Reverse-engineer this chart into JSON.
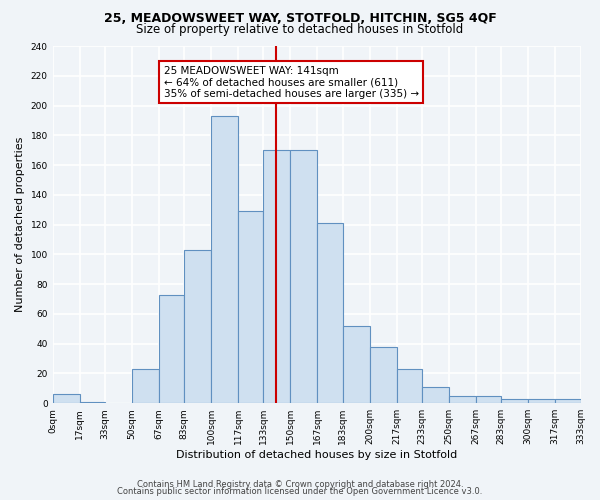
{
  "title1": "25, MEADOWSWEET WAY, STOTFOLD, HITCHIN, SG5 4QF",
  "title2": "Size of property relative to detached houses in Stotfold",
  "xlabel": "Distribution of detached houses by size in Stotfold",
  "ylabel": "Number of detached properties",
  "bin_edges": [
    0,
    17,
    33,
    50,
    67,
    83,
    100,
    117,
    133,
    150,
    167,
    183,
    200,
    217,
    233,
    250,
    267,
    283,
    300,
    317,
    333
  ],
  "bin_counts": [
    6,
    1,
    0,
    23,
    73,
    103,
    193,
    129,
    170,
    170,
    121,
    52,
    38,
    23,
    11,
    5,
    5,
    3,
    3,
    3
  ],
  "bar_color": "#cfe0f0",
  "bar_edgecolor": "#6090c0",
  "property_line_x": 141,
  "property_line_color": "#cc0000",
  "annotation_line1": "25 MEADOWSWEET WAY: 141sqm",
  "annotation_line2": "← 64% of detached houses are smaller (611)",
  "annotation_line3": "35% of semi-detached houses are larger (335) →",
  "annotation_box_edgecolor": "#cc0000",
  "ylim": [
    0,
    240
  ],
  "tick_labels": [
    "0sqm",
    "17sqm",
    "33sqm",
    "50sqm",
    "67sqm",
    "83sqm",
    "100sqm",
    "117sqm",
    "133sqm",
    "150sqm",
    "167sqm",
    "183sqm",
    "200sqm",
    "217sqm",
    "233sqm",
    "250sqm",
    "267sqm",
    "283sqm",
    "300sqm",
    "317sqm",
    "333sqm"
  ],
  "yticks": [
    0,
    20,
    40,
    60,
    80,
    100,
    120,
    140,
    160,
    180,
    200,
    220,
    240
  ],
  "footer1": "Contains HM Land Registry data © Crown copyright and database right 2024.",
  "footer2": "Contains public sector information licensed under the Open Government Licence v3.0.",
  "background_color": "#f0f4f8",
  "grid_color": "#ffffff",
  "title1_fontsize": 9,
  "title2_fontsize": 8.5,
  "axis_label_fontsize": 8,
  "tick_fontsize": 6.5,
  "annotation_fontsize": 7.5,
  "footer_fontsize": 6
}
